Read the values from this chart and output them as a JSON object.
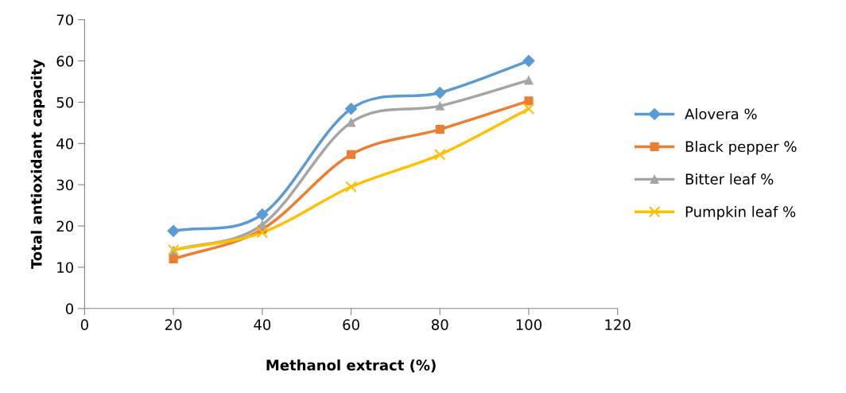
{
  "chart_data": {
    "type": "line",
    "xlabel": "Methanol extract (%)",
    "ylabel": "Total antioxidant capacity",
    "x": [
      20,
      40,
      60,
      80,
      100
    ],
    "series": [
      {
        "name": "Alovera %",
        "color": "#5b9bd5",
        "marker": "diamond",
        "values": [
          18.8,
          22.8,
          48.4,
          52.3,
          60.0
        ]
      },
      {
        "name": "Black pepper %",
        "color": "#ed7d31",
        "marker": "square",
        "values": [
          12.0,
          19.2,
          37.3,
          43.4,
          50.3
        ]
      },
      {
        "name": "Bitter leaf %",
        "color": "#a5a5a5",
        "marker": "triangle",
        "values": [
          14.1,
          20.3,
          45.1,
          49.1,
          55.3
        ]
      },
      {
        "name": "Pumpkin leaf %",
        "color": "#ffc000",
        "marker": "cross",
        "values": [
          14.2,
          18.4,
          29.5,
          37.3,
          48.4
        ]
      }
    ],
    "xlim": [
      0,
      120
    ],
    "xticks": [
      0,
      20,
      40,
      60,
      80,
      100,
      120
    ],
    "ylim": [
      0,
      70
    ],
    "yticks": [
      0,
      10,
      20,
      30,
      40,
      50,
      60,
      70
    ],
    "grid": false,
    "legend": "right",
    "line_style": "solid"
  }
}
